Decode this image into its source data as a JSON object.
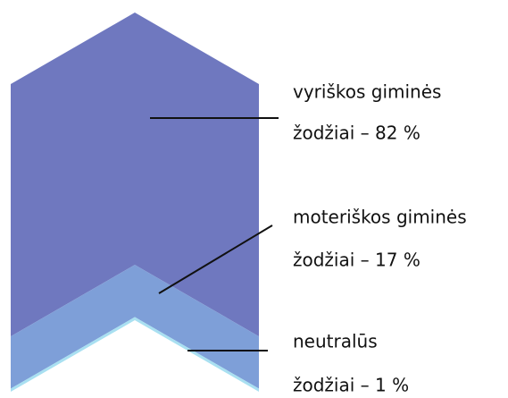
{
  "chart_data": {
    "type": "chevron",
    "categories": [
      "vyriškos giminės",
      "moteriškos giminės",
      "neutralūs"
    ],
    "values": [
      82,
      17,
      1
    ],
    "value_labels": [
      "žodžiai – 82 %",
      "žodžiai – 17 %",
      "žodžiai – 1 %"
    ],
    "colors": [
      "#6f78bf",
      "#7e9fd8",
      "#a9e0f1"
    ]
  }
}
